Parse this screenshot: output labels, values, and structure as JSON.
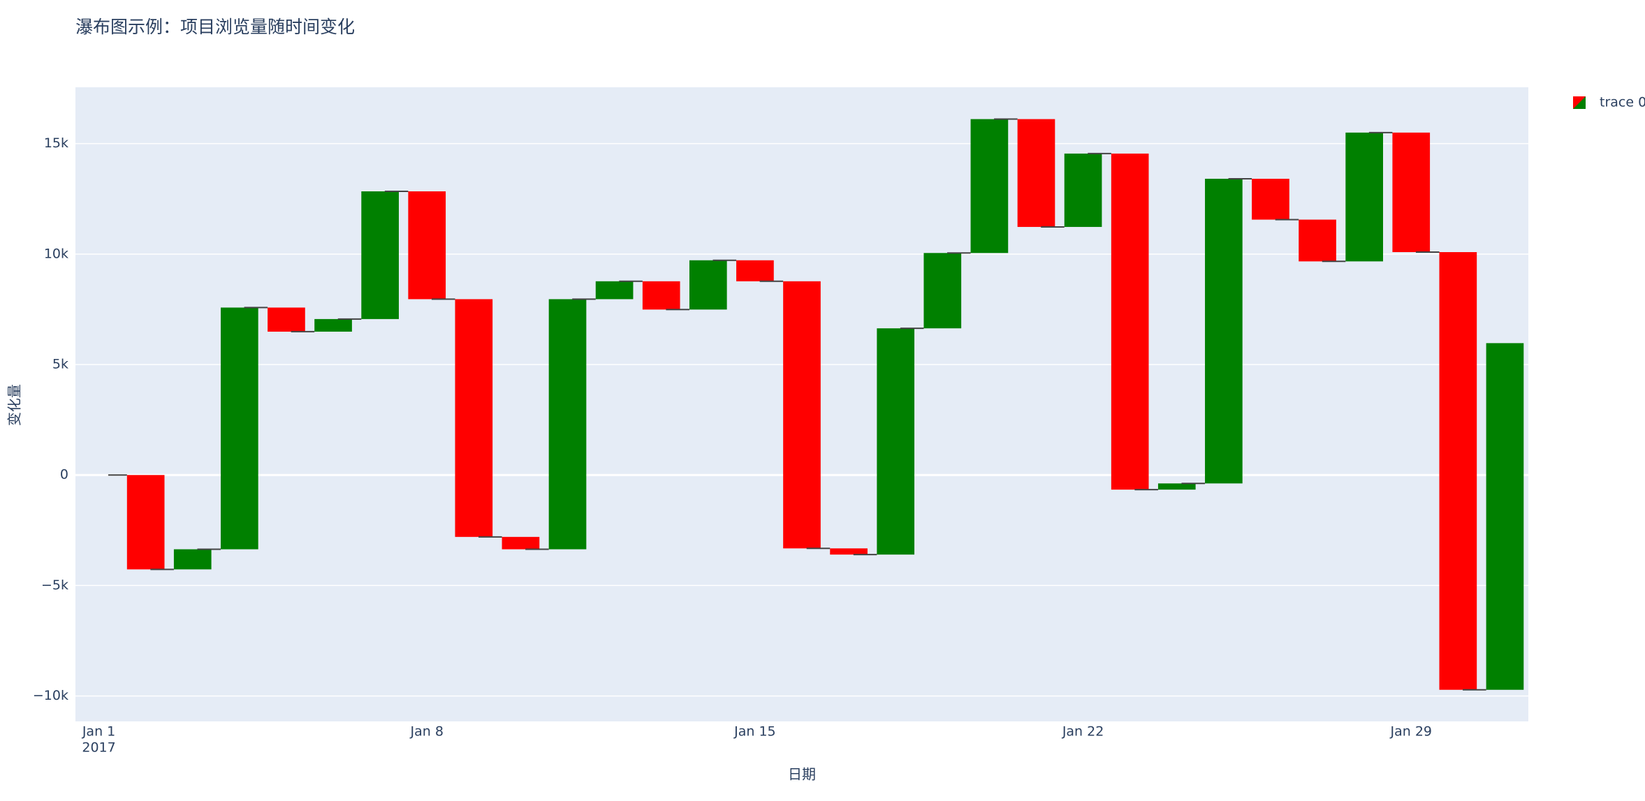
{
  "chart_data": {
    "type": "waterfall",
    "title": "瀑布图示例：项目浏览量随时间变化",
    "x_label": "日期",
    "y_label": "变化量",
    "x": [
      "2017-01-02",
      "2017-01-03",
      "2017-01-04",
      "2017-01-05",
      "2017-01-06",
      "2017-01-07",
      "2017-01-08",
      "2017-01-09",
      "2017-01-10",
      "2017-01-11",
      "2017-01-12",
      "2017-01-13",
      "2017-01-14",
      "2017-01-15",
      "2017-01-16",
      "2017-01-17",
      "2017-01-18",
      "2017-01-19",
      "2017-01-20",
      "2017-01-21",
      "2017-01-22",
      "2017-01-23",
      "2017-01-24",
      "2017-01-25",
      "2017-01-26",
      "2017-01-27",
      "2017-01-28",
      "2017-01-29",
      "2017-01-30",
      "2017-01-31"
    ],
    "series": [
      {
        "name": "trace 0",
        "increasing_color": "#008000",
        "decreasing_color": "#ff0000",
        "values": [
          -4270,
          910,
          10940,
          -1090,
          570,
          5780,
          -4880,
          -10760,
          -560,
          11320,
          810,
          -1280,
          2230,
          -950,
          -12090,
          -280,
          10240,
          3410,
          6060,
          -4880,
          3320,
          -15210,
          280,
          13790,
          -1850,
          -1890,
          5830,
          -5410,
          -19810,
          15690
        ]
      }
    ],
    "xlim": [
      "2016-12-31T12:00",
      "2017-01-31T12:00"
    ],
    "xticks": [
      {
        "value": "2017-01-01",
        "label": "Jan 1"
      },
      {
        "value": "2017-01-08",
        "label": "Jan 8"
      },
      {
        "value": "2017-01-15",
        "label": "Jan 15"
      },
      {
        "value": "2017-01-22",
        "label": "Jan 22"
      },
      {
        "value": "2017-01-29",
        "label": "Jan 29"
      }
    ],
    "xtick_year": "2017",
    "ylim": [
      -11150,
      17550
    ],
    "yticks": [
      {
        "value": -10000,
        "label": "−10k"
      },
      {
        "value": -5000,
        "label": "−5k"
      },
      0,
      {
        "value": 5000,
        "label": "5k"
      },
      {
        "value": 10000,
        "label": "10k"
      },
      {
        "value": 15000,
        "label": "15k"
      }
    ],
    "grid": true,
    "legend_position": "top-right"
  }
}
